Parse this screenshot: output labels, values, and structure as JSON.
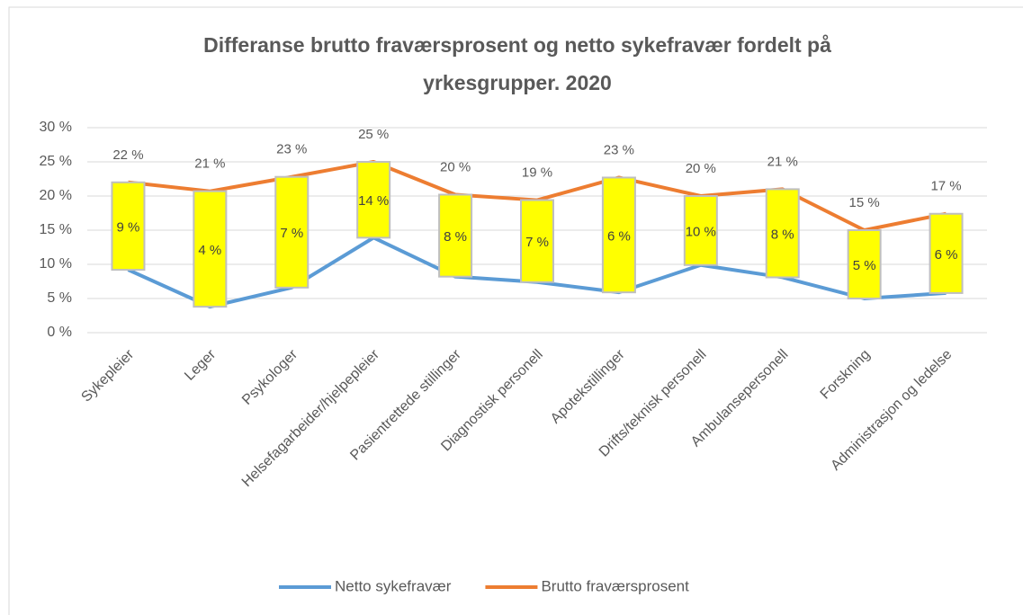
{
  "chart_data": {
    "type": "line",
    "title": [
      "Differanse brutto fraværsprosent og netto sykefravær fordelt på",
      "yrkesgrupper. 2020"
    ],
    "categories": [
      "Sykepleier",
      "Leger",
      "Psykologer",
      "Helsefagarbeider/hjelpepleier",
      "Pasientrettede stillinger",
      "Diagnostisk personell",
      "Apotekstillinger",
      "Drifts/teknisk personell",
      "Ambulansepersonell",
      "Forskning",
      "Administrasjon og ledelse"
    ],
    "series": [
      {
        "name": "Netto sykefravær",
        "color": "#5b9bd5",
        "values": [
          9.2,
          3.8,
          6.6,
          13.9,
          8.2,
          7.4,
          5.9,
          9.9,
          8.1,
          5.0,
          5.8
        ],
        "value_labels": [
          "9 %",
          "4 %",
          "7 %",
          "14 %",
          "8 %",
          "7 %",
          "6 %",
          "10 %",
          "8 %",
          "5 %",
          "6 %"
        ]
      },
      {
        "name": "Brutto fraværsprosent",
        "color": "#ed7d31",
        "values": [
          22,
          20.7,
          22.8,
          25,
          20.2,
          19.4,
          22.7,
          20,
          21,
          15,
          17.4
        ],
        "value_labels": [
          "22 %",
          "21 %",
          "23 %",
          "25 %",
          "20 %",
          "19 %",
          "23 %",
          "20 %",
          "21 %",
          "15 %",
          "17 %"
        ]
      }
    ],
    "up_down_bars": {
      "color": "#ffff00",
      "border": "#bfbfbf"
    },
    "ylim": [
      0,
      30
    ],
    "yticks": [
      {
        "value": 0,
        "label": "0 %"
      },
      {
        "value": 5,
        "label": "5 %"
      },
      {
        "value": 10,
        "label": "10 %"
      },
      {
        "value": 15,
        "label": "15 %"
      },
      {
        "value": 20,
        "label": "20 %"
      },
      {
        "value": 25,
        "label": "25 %"
      },
      {
        "value": 30,
        "label": "30 %"
      }
    ],
    "grid": true,
    "legend": "bottom"
  }
}
